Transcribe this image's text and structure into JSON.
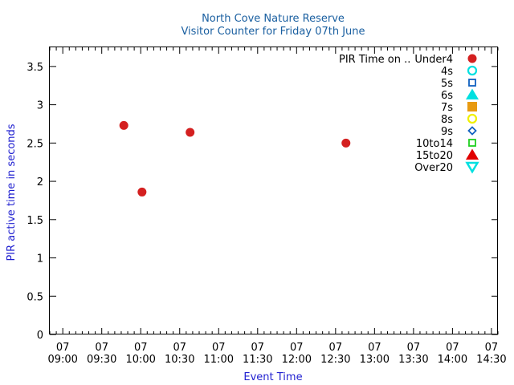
{
  "chart_data": {
    "type": "scatter",
    "title": "North Cove Nature Reserve",
    "subtitle": "Visitor Counter for Friday 07th June",
    "xlabel": "Event Time",
    "ylabel": "PIR active time in seconds",
    "x_range": [
      "08:50",
      "14:35"
    ],
    "ylim": [
      0,
      3.75
    ],
    "y_ticks": [
      0,
      0.5,
      1,
      1.5,
      2,
      2.5,
      3,
      3.5
    ],
    "y_tick_labels": [
      "0",
      "0.5",
      "1",
      "1.5",
      "2",
      "2.5",
      "3",
      "3.5"
    ],
    "x_ticks": [
      {
        "time": "09:00",
        "day": "07",
        "clock": "09:00"
      },
      {
        "time": "09:30",
        "day": "07",
        "clock": "09:30"
      },
      {
        "time": "10:00",
        "day": "07",
        "clock": "10:00"
      },
      {
        "time": "10:30",
        "day": "07",
        "clock": "10:30"
      },
      {
        "time": "11:00",
        "day": "07",
        "clock": "11:00"
      },
      {
        "time": "11:30",
        "day": "07",
        "clock": "11:30"
      },
      {
        "time": "12:00",
        "day": "07",
        "clock": "12:00"
      },
      {
        "time": "12:30",
        "day": "07",
        "clock": "12:30"
      },
      {
        "time": "13:00",
        "day": "07",
        "clock": "13:00"
      },
      {
        "time": "13:30",
        "day": "07",
        "clock": "13:30"
      },
      {
        "time": "14:00",
        "day": "07",
        "clock": "14:00"
      },
      {
        "time": "14:30",
        "day": "07",
        "clock": "14:30"
      }
    ],
    "legend_title": "PIR Time on ..",
    "legend_position": "top-right",
    "grid": false,
    "series": [
      {
        "name": "Under4",
        "marker": "filled-circle",
        "color": "#d42020",
        "points": [
          {
            "x": "09:47",
            "y": 2.73
          },
          {
            "x": "10:01",
            "y": 1.86
          },
          {
            "x": "10:38",
            "y": 2.64
          },
          {
            "x": "12:38",
            "y": 2.5
          }
        ]
      },
      {
        "name": "4s",
        "marker": "open-circle",
        "color": "#00e0e0",
        "points": []
      },
      {
        "name": "5s",
        "marker": "open-square",
        "color": "#1060c0",
        "points": []
      },
      {
        "name": "6s",
        "marker": "filled-triangle-up",
        "color": "#00e0e0",
        "points": []
      },
      {
        "name": "7s",
        "marker": "filled-square",
        "color": "#e89a10",
        "points": []
      },
      {
        "name": "8s",
        "marker": "open-circle",
        "color": "#f0f000",
        "points": []
      },
      {
        "name": "9s",
        "marker": "open-diamond",
        "color": "#1060c0",
        "points": []
      },
      {
        "name": "10to14",
        "marker": "open-square",
        "color": "#20d020",
        "points": []
      },
      {
        "name": "15to20",
        "marker": "filled-triangle-up",
        "color": "#e00000",
        "points": []
      },
      {
        "name": "Over20",
        "marker": "open-triangle-down",
        "color": "#00e0e0",
        "points": []
      }
    ]
  }
}
